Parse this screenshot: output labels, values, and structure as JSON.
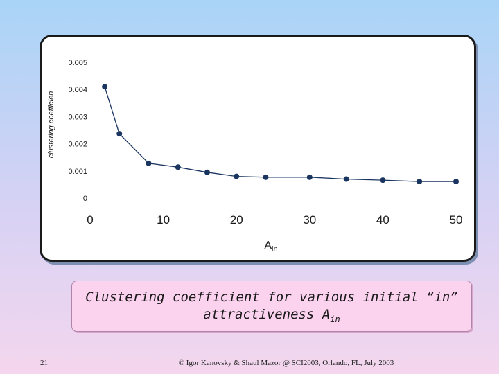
{
  "chart_data": {
    "type": "line",
    "x": [
      2,
      4,
      8,
      12,
      16,
      20,
      24,
      30,
      35,
      40,
      45,
      50
    ],
    "series": [
      {
        "values": [
          0.0041,
          0.00237,
          0.00128,
          0.00114,
          0.00095,
          0.0008,
          0.00077,
          0.00077,
          0.0007,
          0.00066,
          0.00061,
          0.00061
        ]
      }
    ],
    "ylabel": "clustering coefficien",
    "xlabel_main": "A",
    "xlabel_sub": "in",
    "xlim": [
      0,
      50
    ],
    "ylim": [
      0,
      0.005
    ],
    "xticks": [
      0,
      10,
      20,
      30,
      40,
      50
    ],
    "xtick_labels": [
      "0",
      "10",
      "20",
      "30",
      "40",
      "50"
    ],
    "yticks": [
      0,
      0.001,
      0.002,
      0.003,
      0.004,
      0.005
    ],
    "ytick_labels": [
      "0",
      "0.001",
      "0.002",
      "0.003",
      "0.004",
      "0.005"
    ],
    "grid": false,
    "line_color": "#1b3561",
    "marker_color": "#1b3561"
  },
  "caption": {
    "line1": "Clustering coefficient for various initial “in”",
    "line2_main": "attractiveness A",
    "line2_sub": "in"
  },
  "footer": {
    "slide_number": "21",
    "text": "© Igor Kanovsky & Shaul Mazor @ SCI2003, Orlando, FL, July 2003"
  }
}
